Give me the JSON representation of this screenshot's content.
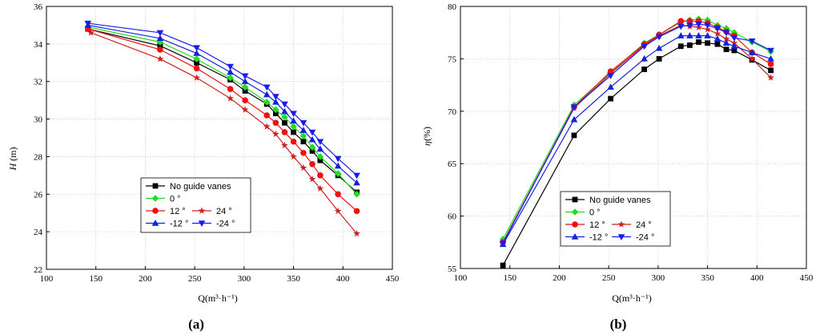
{
  "colors": {
    "no_guide_vanes": "#000000",
    "deg_0": "#22dd22",
    "deg_12": "#ee1111",
    "deg_24": "#cc2222",
    "deg_neg12": "#1122dd",
    "deg_neg24": "#1a1aee"
  },
  "chart_data": [
    {
      "type": "line",
      "panel_label": "(a)",
      "ylabel": "H (m)",
      "ylabel_italic": "H",
      "ylabel_unit": " (m)",
      "xlabel": "Q(m³·h⁻¹)",
      "xlim": [
        100,
        450
      ],
      "ylim": [
        22,
        36
      ],
      "xticks": [
        100,
        150,
        200,
        250,
        300,
        350,
        400,
        450
      ],
      "yticks": [
        22,
        24,
        26,
        28,
        30,
        32,
        34,
        36
      ],
      "grid": true,
      "legend_position": "lower-left-center",
      "series": [
        {
          "name": "No guide vanes",
          "marker": "square",
          "color_key": "no_guide_vanes",
          "x": [
            142,
            215,
            252,
            286,
            301,
            323,
            332,
            341,
            350,
            360,
            369,
            377,
            395,
            414
          ],
          "y": [
            34.8,
            33.9,
            33.0,
            32.1,
            31.5,
            30.8,
            30.3,
            29.8,
            29.3,
            28.8,
            28.3,
            27.8,
            27.0,
            26.1
          ]
        },
        {
          "name": "0 °",
          "marker": "diamond",
          "color_key": "deg_0",
          "x": [
            142,
            215,
            252,
            286,
            301,
            323,
            332,
            341,
            350,
            360,
            369,
            377,
            395,
            414
          ],
          "y": [
            34.9,
            34.1,
            33.2,
            32.2,
            31.7,
            30.9,
            30.5,
            30.1,
            29.6,
            29.1,
            28.5,
            28.0,
            27.1,
            26.0
          ]
        },
        {
          "name": "12 °",
          "marker": "circle",
          "color_key": "deg_12",
          "x": [
            142,
            215,
            252,
            286,
            301,
            323,
            332,
            341,
            350,
            360,
            369,
            377,
            395,
            414
          ],
          "y": [
            34.8,
            33.7,
            32.7,
            31.6,
            31.0,
            30.2,
            29.8,
            29.3,
            28.8,
            28.2,
            27.6,
            27.0,
            26.0,
            25.1
          ]
        },
        {
          "name": "24 °",
          "marker": "star",
          "color_key": "deg_24",
          "x": [
            145,
            215,
            252,
            286,
            301,
            323,
            332,
            341,
            350,
            360,
            369,
            377,
            395,
            414
          ],
          "y": [
            34.6,
            33.2,
            32.2,
            31.1,
            30.5,
            29.6,
            29.2,
            28.6,
            28.0,
            27.4,
            26.8,
            26.3,
            25.1,
            23.9
          ]
        },
        {
          "name": "-12 °",
          "marker": "triangle-up",
          "color_key": "deg_neg12",
          "x": [
            142,
            215,
            252,
            286,
            301,
            323,
            332,
            341,
            350,
            360,
            369,
            377,
            395,
            414
          ],
          "y": [
            35.0,
            34.3,
            33.5,
            32.5,
            32.0,
            31.3,
            30.9,
            30.4,
            29.9,
            29.4,
            28.9,
            28.4,
            27.5,
            26.6
          ]
        },
        {
          "name": "-24 °",
          "marker": "triangle-down",
          "color_key": "deg_neg24",
          "x": [
            142,
            215,
            252,
            286,
            301,
            323,
            332,
            341,
            350,
            360,
            369,
            377,
            395,
            414
          ],
          "y": [
            35.1,
            34.6,
            33.8,
            32.8,
            32.3,
            31.7,
            31.2,
            30.8,
            30.3,
            29.8,
            29.3,
            28.8,
            27.9,
            27.0
          ]
        }
      ]
    },
    {
      "type": "line",
      "panel_label": "(b)",
      "ylabel": "η(%)",
      "ylabel_italic": "η",
      "ylabel_unit": "(%)",
      "xlabel": "Q(m³·h⁻¹)",
      "xlim": [
        100,
        450
      ],
      "ylim": [
        55,
        80
      ],
      "xticks": [
        100,
        150,
        200,
        250,
        300,
        350,
        400,
        450
      ],
      "yticks": [
        55,
        60,
        65,
        70,
        75,
        80
      ],
      "grid": true,
      "legend_position": "lower-center",
      "series": [
        {
          "name": "No guide vanes",
          "marker": "square",
          "color_key": "no_guide_vanes",
          "x": [
            143,
            215,
            252,
            286,
            301,
            323,
            332,
            341,
            350,
            360,
            369,
            377,
            395,
            414
          ],
          "y": [
            55.3,
            67.7,
            71.2,
            74.0,
            75.0,
            76.2,
            76.3,
            76.6,
            76.5,
            76.4,
            75.9,
            75.8,
            74.9,
            73.9
          ]
        },
        {
          "name": "0 °",
          "marker": "diamond",
          "color_key": "deg_0",
          "x": [
            143,
            215,
            252,
            286,
            301,
            323,
            332,
            341,
            350,
            360,
            369,
            377,
            395,
            414
          ],
          "y": [
            57.8,
            70.6,
            73.7,
            76.5,
            77.3,
            78.5,
            78.7,
            78.8,
            78.7,
            78.2,
            77.9,
            77.5,
            76.6,
            75.7
          ]
        },
        {
          "name": "12 °",
          "marker": "circle",
          "color_key": "deg_12",
          "x": [
            143,
            215,
            252,
            286,
            301,
            323,
            332,
            341,
            350,
            360,
            369,
            377,
            395,
            414
          ],
          "y": [
            57.5,
            70.4,
            73.8,
            76.4,
            77.3,
            78.6,
            78.6,
            78.6,
            78.4,
            78.0,
            77.6,
            77.2,
            75.6,
            74.5
          ]
        },
        {
          "name": "24 °",
          "marker": "star",
          "color_key": "deg_24",
          "x": [
            143,
            215,
            252,
            286,
            301,
            323,
            332,
            341,
            350,
            360,
            369,
            377,
            395,
            414
          ],
          "y": [
            57.5,
            70.3,
            73.6,
            76.3,
            77.2,
            78.2,
            78.1,
            78.0,
            77.8,
            77.4,
            76.9,
            76.5,
            75.0,
            73.2
          ]
        },
        {
          "name": "-12 °",
          "marker": "triangle-up",
          "color_key": "deg_neg12",
          "x": [
            143,
            215,
            252,
            286,
            301,
            323,
            332,
            341,
            350,
            360,
            369,
            377,
            395,
            414
          ],
          "y": [
            57.3,
            69.2,
            72.3,
            75.0,
            76.0,
            77.2,
            77.2,
            77.2,
            77.2,
            76.9,
            76.5,
            76.2,
            75.6,
            75.0
          ]
        },
        {
          "name": "-24 °",
          "marker": "triangle-down",
          "color_key": "deg_neg24",
          "x": [
            143,
            215,
            252,
            286,
            301,
            323,
            332,
            341,
            350,
            360,
            369,
            377,
            395,
            414
          ],
          "y": [
            57.4,
            70.4,
            73.4,
            76.2,
            77.1,
            78.1,
            78.2,
            78.3,
            78.2,
            77.9,
            77.5,
            77.0,
            76.7,
            75.8
          ]
        }
      ]
    }
  ]
}
